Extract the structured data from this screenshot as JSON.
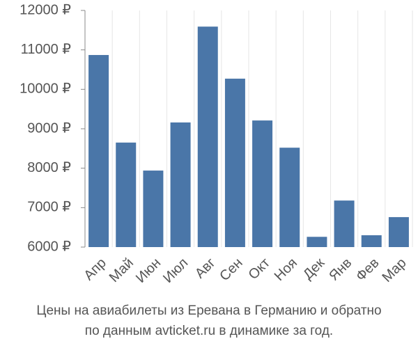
{
  "chart_data": {
    "type": "bar",
    "title": [
      "Цены на авиабилеты из Еревана в Германию и обратно",
      "по данным avticket.ru в динамике за год."
    ],
    "categories": [
      "Апр",
      "Май",
      "Июн",
      "Июл",
      "Авг",
      "Сен",
      "Окт",
      "Ноя",
      "Дек",
      "Янв",
      "Фев",
      "Мар"
    ],
    "values": [
      10870,
      8650,
      7940,
      9160,
      11590,
      10270,
      9210,
      8520,
      6260,
      7180,
      6300,
      6760
    ],
    "color": "#4a76a8",
    "ylim": [
      6000,
      12000
    ],
    "yticks": [
      {
        "value": 6000,
        "label": "6000 ₽"
      },
      {
        "value": 7000,
        "label": "7000 ₽"
      },
      {
        "value": 8000,
        "label": "8000 ₽"
      },
      {
        "value": 9000,
        "label": "9000 ₽"
      },
      {
        "value": 10000,
        "label": "10000 ₽"
      },
      {
        "value": 11000,
        "label": "11000 ₽"
      },
      {
        "value": 12000,
        "label": "12000 ₽"
      }
    ],
    "grid": true
  }
}
